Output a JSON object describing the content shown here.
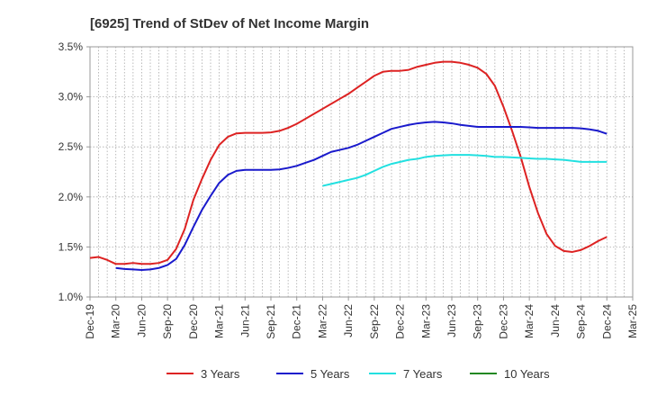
{
  "chart_data": {
    "type": "line",
    "title": "[6925]  Trend of StDev of Net Income Margin",
    "xlabel": "",
    "ylabel": "",
    "x_ticks": [
      "Dec-19",
      "Mar-20",
      "Jun-20",
      "Sep-20",
      "Dec-20",
      "Mar-21",
      "Jun-21",
      "Sep-21",
      "Dec-21",
      "Mar-22",
      "Jun-22",
      "Sep-22",
      "Dec-22",
      "Mar-23",
      "Jun-23",
      "Sep-23",
      "Dec-23",
      "Mar-24",
      "Jun-24",
      "Sep-24",
      "Dec-24",
      "Mar-25"
    ],
    "y_ticks": [
      "1.0%",
      "1.5%",
      "2.0%",
      "2.5%",
      "3.0%",
      "3.5%"
    ],
    "ylim": [
      1.0,
      3.5
    ],
    "grid": "dotted",
    "legend_position": "bottom",
    "series": [
      {
        "name": "3 Years",
        "color": "#dd2222",
        "x": [
          "2019-12",
          "2020-01",
          "2020-02",
          "2020-03",
          "2020-04",
          "2020-05",
          "2020-06",
          "2020-07",
          "2020-08",
          "2020-09",
          "2020-10",
          "2020-11",
          "2020-12",
          "2021-01",
          "2021-02",
          "2021-03",
          "2021-04",
          "2021-05",
          "2021-06",
          "2021-07",
          "2021-08",
          "2021-09",
          "2021-10",
          "2021-11",
          "2021-12",
          "2022-01",
          "2022-02",
          "2022-03",
          "2022-04",
          "2022-05",
          "2022-06",
          "2022-07",
          "2022-08",
          "2022-09",
          "2022-10",
          "2022-11",
          "2022-12",
          "2023-01",
          "2023-02",
          "2023-03",
          "2023-04",
          "2023-05",
          "2023-06",
          "2023-07",
          "2023-08",
          "2023-09",
          "2023-10",
          "2023-11",
          "2023-12",
          "2024-01",
          "2024-02",
          "2024-03",
          "2024-04",
          "2024-05",
          "2024-06",
          "2024-07",
          "2024-08",
          "2024-09",
          "2024-10",
          "2024-11",
          "2024-12"
        ],
        "values": [
          1.39,
          1.4,
          1.37,
          1.33,
          1.33,
          1.34,
          1.33,
          1.33,
          1.34,
          1.37,
          1.48,
          1.68,
          1.97,
          2.18,
          2.37,
          2.52,
          2.6,
          2.635,
          2.64,
          2.64,
          2.64,
          2.645,
          2.66,
          2.69,
          2.73,
          2.78,
          2.83,
          2.88,
          2.93,
          2.98,
          3.03,
          3.09,
          3.15,
          3.21,
          3.25,
          3.26,
          3.26,
          3.27,
          3.3,
          3.32,
          3.34,
          3.35,
          3.35,
          3.34,
          3.32,
          3.29,
          3.23,
          3.11,
          2.9,
          2.66,
          2.4,
          2.1,
          1.84,
          1.63,
          1.51,
          1.46,
          1.45,
          1.47,
          1.51,
          1.56,
          1.6
        ]
      },
      {
        "name": "5 Years",
        "color": "#1a1acc",
        "x": [
          "2020-03",
          "2020-04",
          "2020-05",
          "2020-06",
          "2020-07",
          "2020-08",
          "2020-09",
          "2020-10",
          "2020-11",
          "2020-12",
          "2021-01",
          "2021-02",
          "2021-03",
          "2021-04",
          "2021-05",
          "2021-06",
          "2021-07",
          "2021-08",
          "2021-09",
          "2021-10",
          "2021-11",
          "2021-12",
          "2022-01",
          "2022-02",
          "2022-03",
          "2022-04",
          "2022-05",
          "2022-06",
          "2022-07",
          "2022-08",
          "2022-09",
          "2022-10",
          "2022-11",
          "2022-12",
          "2023-01",
          "2023-02",
          "2023-03",
          "2023-04",
          "2023-05",
          "2023-06",
          "2023-07",
          "2023-08",
          "2023-09",
          "2023-10",
          "2023-11",
          "2023-12",
          "2024-01",
          "2024-02",
          "2024-03",
          "2024-04",
          "2024-05",
          "2024-06",
          "2024-07",
          "2024-08",
          "2024-09",
          "2024-10",
          "2024-11",
          "2024-12"
        ],
        "values": [
          1.29,
          1.28,
          1.275,
          1.27,
          1.275,
          1.29,
          1.32,
          1.38,
          1.52,
          1.7,
          1.87,
          2.01,
          2.14,
          2.22,
          2.26,
          2.27,
          2.27,
          2.27,
          2.27,
          2.275,
          2.29,
          2.31,
          2.34,
          2.37,
          2.41,
          2.45,
          2.47,
          2.49,
          2.52,
          2.56,
          2.6,
          2.64,
          2.68,
          2.7,
          2.72,
          2.735,
          2.745,
          2.75,
          2.745,
          2.735,
          2.72,
          2.71,
          2.7,
          2.7,
          2.7,
          2.7,
          2.7,
          2.7,
          2.695,
          2.69,
          2.69,
          2.69,
          2.69,
          2.69,
          2.685,
          2.675,
          2.66,
          2.63
        ]
      },
      {
        "name": "7 Years",
        "color": "#22e0e0",
        "x": [
          "2022-03",
          "2022-04",
          "2022-05",
          "2022-06",
          "2022-07",
          "2022-08",
          "2022-09",
          "2022-10",
          "2022-11",
          "2022-12",
          "2023-01",
          "2023-02",
          "2023-03",
          "2023-04",
          "2023-05",
          "2023-06",
          "2023-07",
          "2023-08",
          "2023-09",
          "2023-10",
          "2023-11",
          "2023-12",
          "2024-01",
          "2024-02",
          "2024-03",
          "2024-04",
          "2024-05",
          "2024-06",
          "2024-07",
          "2024-08",
          "2024-09",
          "2024-10",
          "2024-11",
          "2024-12"
        ],
        "values": [
          2.11,
          2.13,
          2.15,
          2.17,
          2.19,
          2.22,
          2.26,
          2.3,
          2.33,
          2.35,
          2.37,
          2.38,
          2.4,
          2.41,
          2.415,
          2.42,
          2.42,
          2.42,
          2.415,
          2.41,
          2.4,
          2.4,
          2.395,
          2.39,
          2.385,
          2.38,
          2.38,
          2.375,
          2.37,
          2.36,
          2.35,
          2.35,
          2.35,
          2.35
        ]
      },
      {
        "name": "10 Years",
        "color": "#228822",
        "x": [],
        "values": []
      }
    ]
  }
}
